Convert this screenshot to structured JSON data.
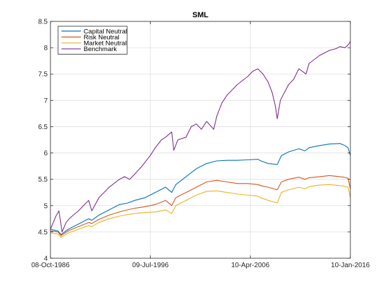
{
  "chart_data": {
    "type": "line",
    "title": "SML",
    "xlabel": "",
    "ylabel": "",
    "x_tick_labels": [
      "08-Oct-1986",
      "09-Jul-1996",
      "10-Apr-2006",
      "10-Jan-2016"
    ],
    "x_tick_years": [
      1986.77,
      1996.52,
      2006.27,
      2016.03
    ],
    "xlim": [
      1986.77,
      2016.03
    ],
    "ylim": [
      4,
      8.5
    ],
    "y_ticks": [
      4,
      4.5,
      5,
      5.5,
      6,
      6.5,
      7,
      7.5,
      8,
      8.5
    ],
    "y_tick_labels": [
      "4",
      "4.5",
      "5",
      "5.5",
      "6",
      "6.5",
      "7",
      "7.5",
      "8",
      "8.5"
    ],
    "grid": true,
    "legend_position": "top-left",
    "series": [
      {
        "name": "Capital Neutral",
        "color": "#0072BD",
        "x": [
          1986.77,
          1987.5,
          1987.8,
          1988.5,
          1989.5,
          1990.5,
          1990.8,
          1991.5,
          1992.5,
          1993.5,
          1994.3,
          1995.0,
          1996.0,
          1997.0,
          1998.0,
          1998.6,
          1999.0,
          2000.0,
          2001.0,
          2002.0,
          2003.0,
          2004.0,
          2005.0,
          2006.0,
          2007.0,
          2007.3,
          2008.0,
          2008.9,
          2009.3,
          2010.0,
          2011.0,
          2011.6,
          2012.0,
          2013.0,
          2014.0,
          2015.0,
          2015.4,
          2015.8,
          2016.03
        ],
        "values": [
          4.55,
          4.52,
          4.45,
          4.55,
          4.65,
          4.75,
          4.72,
          4.82,
          4.92,
          5.02,
          5.05,
          5.1,
          5.15,
          5.25,
          5.35,
          5.25,
          5.4,
          5.55,
          5.7,
          5.8,
          5.85,
          5.86,
          5.86,
          5.87,
          5.88,
          5.85,
          5.8,
          5.78,
          5.95,
          6.02,
          6.08,
          6.04,
          6.1,
          6.14,
          6.17,
          6.18,
          6.15,
          6.1,
          5.95
        ]
      },
      {
        "name": "Risk Neutral",
        "color": "#D95319",
        "x": [
          1986.77,
          1987.5,
          1987.8,
          1988.5,
          1989.5,
          1990.5,
          1990.8,
          1991.5,
          1992.5,
          1993.5,
          1994.3,
          1995.0,
          1996.0,
          1997.0,
          1998.0,
          1998.6,
          1999.0,
          2000.0,
          2001.0,
          2002.0,
          2003.0,
          2004.0,
          2005.0,
          2006.0,
          2007.0,
          2007.3,
          2008.0,
          2008.9,
          2009.3,
          2010.0,
          2011.0,
          2011.6,
          2012.0,
          2013.0,
          2014.0,
          2015.0,
          2015.4,
          2015.8,
          2016.03
        ],
        "values": [
          4.52,
          4.5,
          4.43,
          4.52,
          4.6,
          4.68,
          4.66,
          4.74,
          4.82,
          4.88,
          4.92,
          4.95,
          4.98,
          5.02,
          5.1,
          5.0,
          5.15,
          5.25,
          5.35,
          5.45,
          5.48,
          5.45,
          5.42,
          5.42,
          5.4,
          5.38,
          5.35,
          5.3,
          5.45,
          5.5,
          5.54,
          5.5,
          5.53,
          5.55,
          5.57,
          5.55,
          5.54,
          5.52,
          5.32
        ]
      },
      {
        "name": "Market Neutral",
        "color": "#EDB120",
        "x": [
          1986.77,
          1987.5,
          1987.8,
          1988.5,
          1989.5,
          1990.5,
          1990.8,
          1991.5,
          1992.5,
          1993.5,
          1994.3,
          1995.0,
          1996.0,
          1997.0,
          1998.0,
          1998.6,
          1999.0,
          2000.0,
          2001.0,
          2002.0,
          2003.0,
          2004.0,
          2005.0,
          2006.0,
          2007.0,
          2007.3,
          2008.0,
          2008.9,
          2009.3,
          2010.0,
          2011.0,
          2011.6,
          2012.0,
          2013.0,
          2014.0,
          2015.0,
          2015.4,
          2015.8,
          2016.03
        ],
        "values": [
          4.48,
          4.46,
          4.4,
          4.48,
          4.55,
          4.62,
          4.6,
          4.68,
          4.75,
          4.8,
          4.83,
          4.85,
          4.87,
          4.88,
          4.92,
          4.85,
          5.0,
          5.1,
          5.2,
          5.27,
          5.28,
          5.25,
          5.22,
          5.2,
          5.18,
          5.15,
          5.1,
          5.05,
          5.25,
          5.3,
          5.35,
          5.32,
          5.36,
          5.39,
          5.4,
          5.38,
          5.37,
          5.35,
          5.15
        ]
      },
      {
        "name": "Benchmark",
        "color": "#7E2F8E",
        "x": [
          1986.77,
          1987.3,
          1987.6,
          1987.9,
          1988.3,
          1988.6,
          1989.0,
          1989.5,
          1990.0,
          1990.5,
          1990.8,
          1991.5,
          1992.5,
          1993.5,
          1994.0,
          1994.5,
          1995.0,
          1995.7,
          1996.5,
          1997.0,
          1997.6,
          1998.0,
          1998.6,
          1998.8,
          1999.2,
          2000.0,
          2000.5,
          2001.0,
          2001.5,
          2002.0,
          2002.7,
          2003.0,
          2003.5,
          2004.0,
          2005.0,
          2006.0,
          2006.5,
          2007.0,
          2007.5,
          2008.0,
          2008.4,
          2008.7,
          2008.9,
          2009.2,
          2009.6,
          2010.0,
          2010.5,
          2011.0,
          2011.7,
          2012.0,
          2013.0,
          2014.0,
          2014.6,
          2015.0,
          2015.5,
          2015.8,
          2016.03
        ],
        "values": [
          4.55,
          4.8,
          4.9,
          4.5,
          4.68,
          4.75,
          4.82,
          4.9,
          5.0,
          5.1,
          4.9,
          5.15,
          5.35,
          5.5,
          5.55,
          5.5,
          5.6,
          5.75,
          5.95,
          6.1,
          6.25,
          6.3,
          6.4,
          6.05,
          6.25,
          6.3,
          6.5,
          6.55,
          6.45,
          6.6,
          6.45,
          6.7,
          6.95,
          7.1,
          7.3,
          7.45,
          7.55,
          7.6,
          7.5,
          7.35,
          7.15,
          6.9,
          6.65,
          7.0,
          7.15,
          7.3,
          7.4,
          7.6,
          7.5,
          7.7,
          7.85,
          7.95,
          7.98,
          8.02,
          8.0,
          8.05,
          8.12
        ]
      }
    ]
  }
}
